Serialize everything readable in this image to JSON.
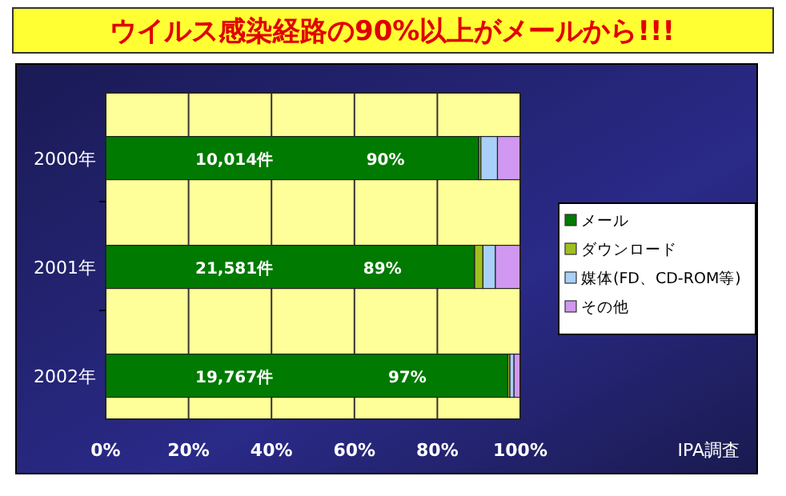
{
  "chart_data": {
    "type": "bar",
    "orientation": "horizontal",
    "stacked": true,
    "title": "ウイルス感染経路の90%以上がメールから!!!",
    "categories": [
      "2000年",
      "2001年",
      "2002年"
    ],
    "series": [
      {
        "name": "メール",
        "color": "#007a00",
        "values": [
          90,
          89,
          97
        ],
        "value_labels": [
          "90%",
          "89%",
          "97%"
        ]
      },
      {
        "name": "ダウンロード",
        "color": "#a0c020",
        "values": [
          0.5,
          2,
          0.5
        ]
      },
      {
        "name": "媒体(FD、CD-ROM等)",
        "color": "#a8d0f8",
        "values": [
          4,
          3,
          1
        ]
      },
      {
        "name": "その他",
        "color": "#d098f0",
        "values": [
          5.5,
          6,
          1.5
        ]
      }
    ],
    "xlim": [
      0,
      100
    ],
    "xticks": [
      {
        "value": 0,
        "label": "0%"
      },
      {
        "value": 20,
        "label": "20%"
      },
      {
        "value": 40,
        "label": "40%"
      },
      {
        "value": 60,
        "label": "60%"
      },
      {
        "value": 80,
        "label": "80%"
      },
      {
        "value": 100,
        "label": "100%"
      }
    ],
    "grid": "x",
    "legend": "right",
    "annotations": [
      "10,014件",
      "21,581件",
      "19,767件",
      "IPA調査"
    ]
  }
}
